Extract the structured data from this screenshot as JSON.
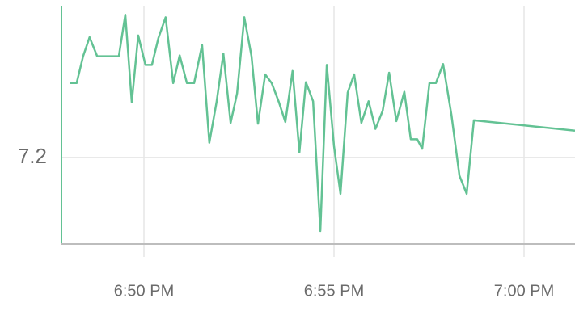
{
  "chart_data": {
    "type": "line",
    "x": [
      48.06,
      48.23,
      48.4,
      48.57,
      48.77,
      49.34,
      49.51,
      49.68,
      49.85,
      50.04,
      50.21,
      50.38,
      50.57,
      50.77,
      50.94,
      51.13,
      51.32,
      51.53,
      51.72,
      51.91,
      52.09,
      52.28,
      52.45,
      52.64,
      52.83,
      53.0,
      53.19,
      53.36,
      53.55,
      53.72,
      53.91,
      54.09,
      54.26,
      54.45,
      54.64,
      54.81,
      55.0,
      55.17,
      55.36,
      55.53,
      55.72,
      55.91,
      56.09,
      56.28,
      56.45,
      56.64,
      56.85,
      57.02,
      57.19,
      57.32,
      57.51,
      57.68,
      57.87,
      58.09,
      58.3,
      58.49,
      58.68,
      61.34
    ],
    "series": [
      {
        "color": "#63c294",
        "values": [
          7.286,
          7.286,
          7.317,
          7.339,
          7.317,
          7.317,
          7.365,
          7.264,
          7.341,
          7.307,
          7.307,
          7.338,
          7.362,
          7.286,
          7.318,
          7.286,
          7.286,
          7.33,
          7.217,
          7.264,
          7.32,
          7.24,
          7.274,
          7.362,
          7.317,
          7.239,
          7.296,
          7.286,
          7.264,
          7.241,
          7.3,
          7.206,
          7.287,
          7.265,
          7.115,
          7.307,
          7.213,
          7.158,
          7.275,
          7.296,
          7.24,
          7.265,
          7.233,
          7.254,
          7.298,
          7.242,
          7.276,
          7.221,
          7.221,
          7.21,
          7.286,
          7.286,
          7.308,
          7.249,
          7.179,
          7.158,
          7.243,
          7.231
        ]
      }
    ],
    "xlim": [
      47.83,
      61.34
    ],
    "xticks": [
      {
        "value": 50,
        "label": "6:50 PM"
      },
      {
        "value": 55,
        "label": "6:55 PM"
      },
      {
        "value": 60,
        "label": "7:00 PM"
      }
    ],
    "ylim": [
      7.1,
      7.382
    ],
    "yticks": [
      7.2
    ],
    "grid": true
  }
}
